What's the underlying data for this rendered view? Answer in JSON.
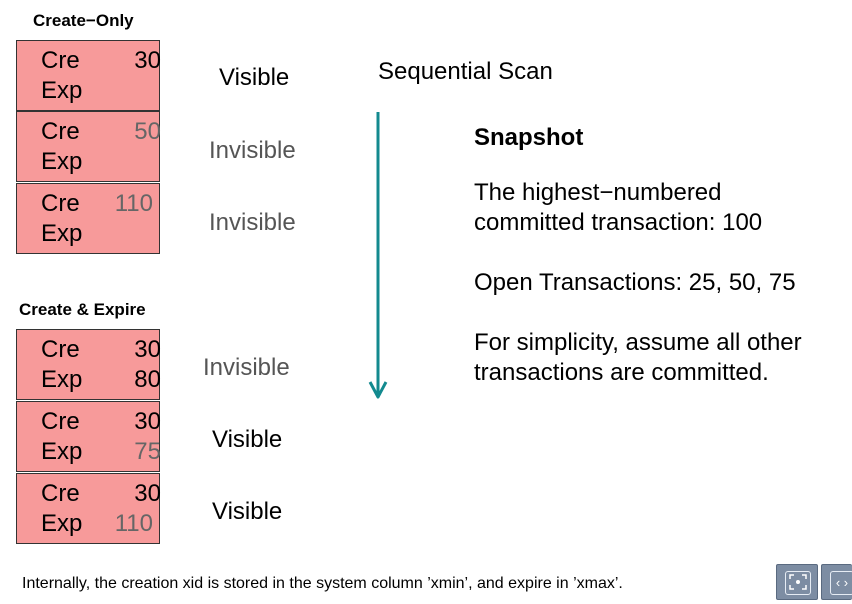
{
  "create_only": {
    "title": "Create−Only",
    "tuples": [
      {
        "cre_label": "Cre",
        "cre_value": "30",
        "exp_label": "Exp",
        "exp_value": "",
        "status": "Visible"
      },
      {
        "cre_label": "Cre",
        "cre_value": "50",
        "exp_label": "Exp",
        "exp_value": "",
        "status": "Invisible"
      },
      {
        "cre_label": "Cre",
        "cre_value": "110",
        "exp_label": "Exp",
        "exp_value": "",
        "status": "Invisible"
      }
    ]
  },
  "create_expire": {
    "title": "Create & Expire",
    "tuples": [
      {
        "cre_label": "Cre",
        "cre_value": "30",
        "exp_label": "Exp",
        "exp_value": "80",
        "status": "Invisible"
      },
      {
        "cre_label": "Cre",
        "cre_value": "30",
        "exp_label": "Exp",
        "exp_value": "75",
        "status": "Visible"
      },
      {
        "cre_label": "Cre",
        "cre_value": "30",
        "exp_label": "Exp",
        "exp_value": "110",
        "status": "Visible"
      }
    ]
  },
  "scan": {
    "label": "Sequential Scan",
    "arrow_color": "#138a8f"
  },
  "snapshot": {
    "title": "Snapshot",
    "highest_line1": "The highest−numbered",
    "highest_line2": "committed transaction:  100",
    "open_transactions": "Open Transactions:  25, 50, 75",
    "assume_line1": "For simplicity, assume all other",
    "assume_line2": "transactions are committed."
  },
  "footnote": "Internally, the creation xid is stored in the system column ’xmin’, and expire in ’xmax’.",
  "nav": {
    "fullscreen_icon": "fullscreen-icon",
    "prev_icon": "chevron-left-icon",
    "prev_glyph": "‹ ›"
  },
  "colors": {
    "tuple_fill": "#f79a9a",
    "nav_fill": "#7d8da3"
  }
}
